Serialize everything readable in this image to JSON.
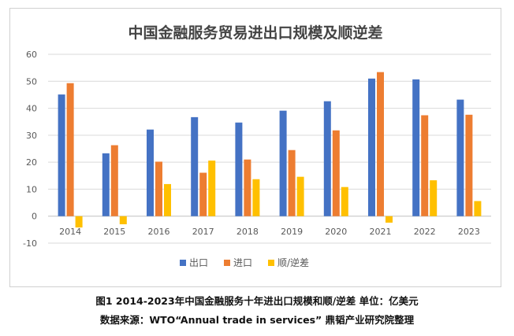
{
  "chart_data": {
    "type": "bar",
    "title": "中国金融服务贸易进出口规模及顺逆差",
    "categories": [
      "2014",
      "2015",
      "2016",
      "2017",
      "2018",
      "2019",
      "2020",
      "2021",
      "2022",
      "2023"
    ],
    "series": [
      {
        "name": "出口",
        "color": "#4472c4",
        "values": [
          45.1,
          23.3,
          32.1,
          36.7,
          34.7,
          39.1,
          42.6,
          51.0,
          50.7,
          43.2
        ]
      },
      {
        "name": "进口",
        "color": "#ed7d31",
        "values": [
          49.3,
          26.3,
          20.2,
          16.1,
          21.0,
          24.5,
          31.8,
          53.4,
          37.4,
          37.6
        ]
      },
      {
        "name": "顺/逆差",
        "color": "#ffc000",
        "values": [
          -4.2,
          -3.0,
          11.9,
          20.6,
          13.7,
          14.6,
          10.8,
          -2.4,
          13.3,
          5.6
        ]
      }
    ],
    "ylim": [
      -10,
      60
    ],
    "yticks": [
      -10,
      0,
      10,
      20,
      30,
      40,
      50,
      60
    ],
    "grid": true,
    "legend": "bottom"
  },
  "captions": {
    "figure": "图1 2014-2023年中国金融服务十年进出口规模和顺/逆差 单位：亿美元",
    "source": "数据来源：WTO“Annual trade in services” 鼎韬产业研究院整理"
  }
}
